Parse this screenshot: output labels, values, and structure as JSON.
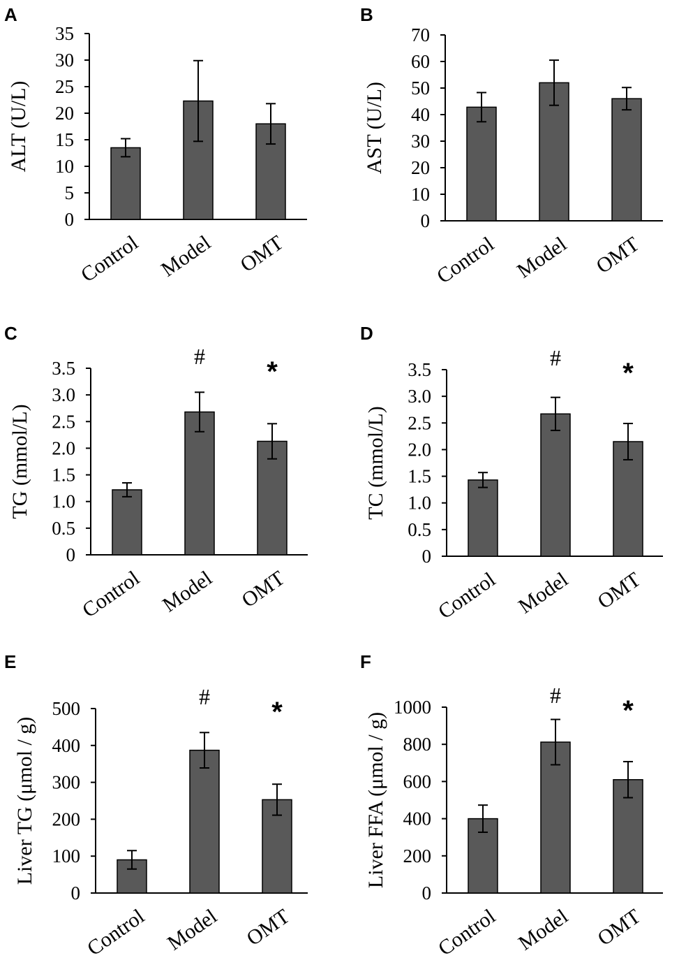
{
  "figure": {
    "categories": [
      "Control",
      "Model",
      "OMT"
    ]
  },
  "chart_data": [
    {
      "panel": "A",
      "type": "bar",
      "ylabel": "ALT (U/L)",
      "ylim": [
        0,
        35
      ],
      "yticks": [
        "0",
        "5",
        "10",
        "15",
        "20",
        "25",
        "30",
        "35"
      ],
      "categories": [
        "Control",
        "Model",
        "OMT"
      ],
      "values": [
        13.5,
        22.3,
        18.0
      ],
      "errors": [
        1.7,
        7.6,
        3.8
      ],
      "annotations": [
        "",
        "",
        ""
      ]
    },
    {
      "panel": "B",
      "type": "bar",
      "ylabel": "AST (U/L)",
      "ylim": [
        0,
        70
      ],
      "yticks": [
        "0",
        "10",
        "20",
        "30",
        "40",
        "50",
        "60",
        "70"
      ],
      "categories": [
        "Control",
        "Model",
        "OMT"
      ],
      "values": [
        42.8,
        52.0,
        46.0
      ],
      "errors": [
        5.5,
        8.5,
        4.2
      ],
      "annotations": [
        "",
        "",
        ""
      ]
    },
    {
      "panel": "C",
      "type": "bar",
      "ylabel": "TG (mmol/L)",
      "ylim": [
        0,
        3.5
      ],
      "yticks": [
        "0",
        "0.5",
        "1.0",
        "1.5",
        "2.0",
        "2.5",
        "3.0",
        "3.5"
      ],
      "categories": [
        "Control",
        "Model",
        "OMT"
      ],
      "values": [
        1.22,
        2.68,
        2.13
      ],
      "errors": [
        0.13,
        0.37,
        0.33
      ],
      "annotations": [
        "",
        "#",
        "*"
      ]
    },
    {
      "panel": "D",
      "type": "bar",
      "ylabel": "TC (mmol/L)",
      "ylim": [
        0,
        3.5
      ],
      "yticks": [
        "0",
        "0.5",
        "1.0",
        "1.5",
        "2.0",
        "2.5",
        "3.0",
        "3.5"
      ],
      "categories": [
        "Control",
        "Model",
        "OMT"
      ],
      "values": [
        1.43,
        2.67,
        2.15
      ],
      "errors": [
        0.14,
        0.31,
        0.34
      ],
      "annotations": [
        "",
        "#",
        "*"
      ]
    },
    {
      "panel": "E",
      "type": "bar",
      "ylabel": "Liver  TG (μmol / g)",
      "ylim": [
        0,
        500
      ],
      "yticks": [
        "0",
        "100",
        "200",
        "300",
        "400",
        "500"
      ],
      "categories": [
        "Control",
        "Model",
        "OMT"
      ],
      "values": [
        90,
        387,
        253
      ],
      "errors": [
        25,
        48,
        42
      ],
      "annotations": [
        "",
        "#",
        "*"
      ]
    },
    {
      "panel": "F",
      "type": "bar",
      "ylabel": "Liver  FFA (μmol / g)",
      "ylim": [
        0,
        1000
      ],
      "yticks": [
        "0",
        "200",
        "400",
        "600",
        "800",
        "1000"
      ],
      "categories": [
        "Control",
        "Model",
        "OMT"
      ],
      "values": [
        400,
        812,
        610
      ],
      "errors": [
        73,
        122,
        97
      ],
      "annotations": [
        "",
        "#",
        "*"
      ]
    }
  ]
}
